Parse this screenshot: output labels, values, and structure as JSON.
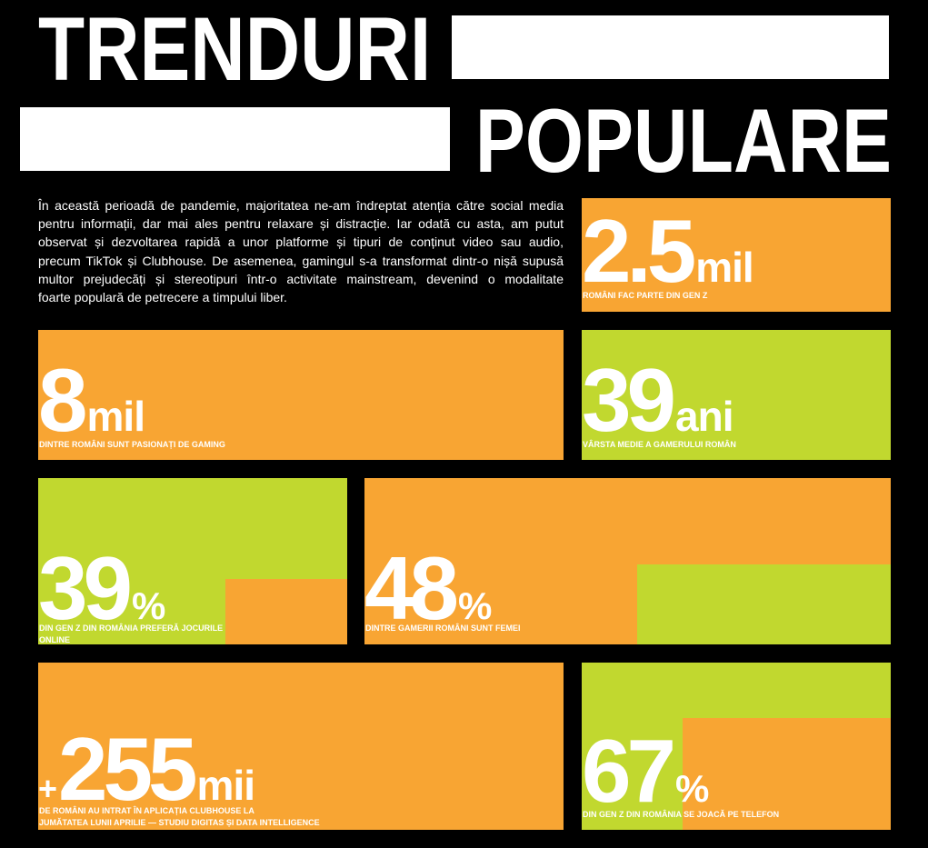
{
  "colors": {
    "background": "#000000",
    "text": "#FFFFFF",
    "title_bar": "#FFFFFF",
    "orange": "#F8A533",
    "green": "#C1D82F"
  },
  "title": {
    "line1": "TRENDURI",
    "line2": "POPULARE"
  },
  "intro": {
    "lines": [
      "În această perioadă de pandemie, majoritatea ne-am îndreptat atenția către social media",
      "pentru informații, dar mai ales pentru relaxare și distracție. Iar odată cu asta, am putut",
      "observat și dezvoltarea rapidă a unor platforme și tipuri de conținut video sau audio,",
      "precum TikTok și Clubhouse. De asemenea, gamingul s-a transformat dintr-o nișă supusă",
      "multor prejudecăți și stereotipuri într-o activitate mainstream, devenind o modalitate",
      "foarte populară de petrecere a timpului liber."
    ]
  },
  "stats": [
    {
      "value": "2.5",
      "unit": "mil",
      "caption": [
        "ROMÂNI FAC PARTE DIN GEN Z"
      ],
      "background": "#F8A533"
    },
    {
      "value": "8",
      "unit": "mil",
      "caption": [
        "DINTRE ROMÂNI SUNT PASIONAȚI DE GAMING"
      ],
      "background": "#F8A533"
    },
    {
      "value": "39",
      "unit": "ani",
      "caption": [
        "VÂRSTA MEDIE A GAMERULUI ROMÂN"
      ],
      "background": "#C1D82F"
    },
    {
      "value": "39",
      "unit": "%",
      "caption": [
        "DIN GEN Z DIN ROMÂNIA PREFERĂ JOCURILE",
        "ONLINE"
      ],
      "background": "#C1D82F",
      "accent": "#F8A533"
    },
    {
      "value": "48",
      "unit": "%",
      "caption": [
        "DINTRE GAMERII ROMÂNI SUNT FEMEI"
      ],
      "background": "#F8A533",
      "accent": "#C1D82F"
    },
    {
      "prefix": "+",
      "value": "255",
      "unit": "mii",
      "caption": [
        "DE ROMÂNI AU INTRAT ÎN APLICAȚIA CLUBHOUSE LA",
        "JUMĂTATEA LUNII APRILIE — STUDIU DIGITAS ȘI DATA INTELLIGENCE"
      ],
      "background": "#F8A533"
    },
    {
      "value": "67",
      "unit": "%",
      "caption": [
        "DIN GEN Z DIN ROMÂNIA SE JOACĂ PE TELEFON"
      ],
      "background": "#C1D82F",
      "accent": "#F8A533"
    }
  ]
}
